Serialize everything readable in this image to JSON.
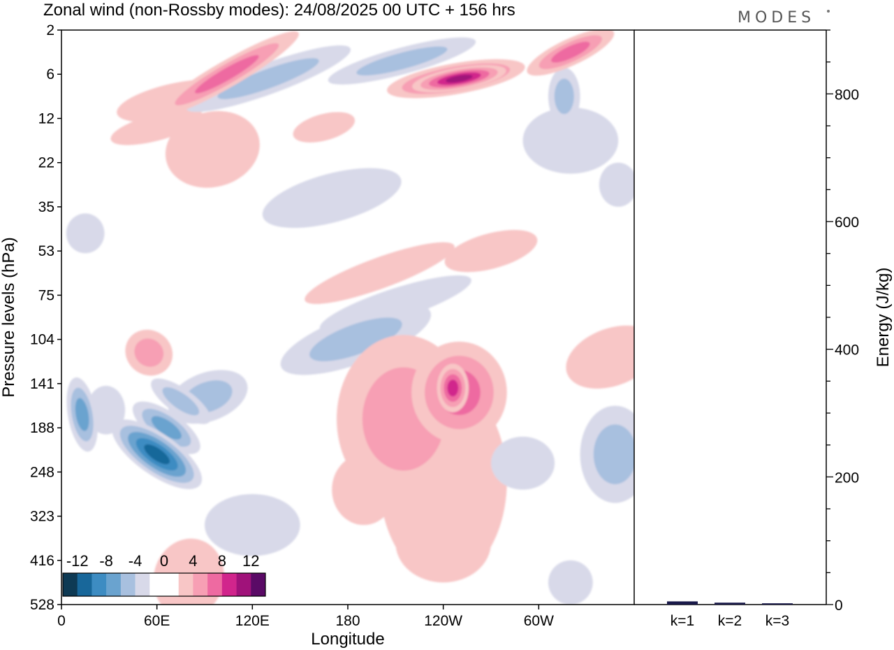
{
  "brand": "MODES",
  "chart_data": [
    {
      "type": "heatmap",
      "title": "Zonal wind (non-Rossby modes):  24/08/2025  00 UTC  + 156 hrs",
      "xlabel": "Longitude",
      "ylabel": "Pressure levels (hPa)",
      "x_ticks": [
        "0",
        "60E",
        "120E",
        "180",
        "120W",
        "60W"
      ],
      "x_range": [
        0,
        360
      ],
      "y_ticks": [
        "2",
        "6",
        "12",
        "22",
        "35",
        "53",
        "75",
        "104",
        "141",
        "188",
        "248",
        "323",
        "416",
        "528"
      ],
      "colorbar": {
        "tick_labels": [
          "-12",
          "-8",
          "-4",
          "0",
          "4",
          "8",
          "12"
        ],
        "bin_colors": [
          "#0e3a54",
          "#18679a",
          "#3d8cc2",
          "#6aa3cf",
          "#a8c0df",
          "#d8d9e9",
          "#ffffff",
          "#ffffff",
          "#f8c6c6",
          "#f79fb4",
          "#ee6aa1",
          "#d1258c",
          "#a0127a",
          "#5a0a66"
        ]
      },
      "blobs": [
        {
          "lon": 60,
          "lev": 9.6,
          "w": 13,
          "h": 2.4,
          "rot": -55,
          "v": -11
        },
        {
          "lon": 66,
          "lev": 9.0,
          "w": 10,
          "h": 1.8,
          "rot": -55,
          "v": -8
        },
        {
          "lon": 75,
          "lev": 8.4,
          "w": 8,
          "h": 1.6,
          "rot": -55,
          "v": -6
        },
        {
          "lon": 92,
          "lev": 8.3,
          "w": 26,
          "h": 1.1,
          "rot": -20,
          "v": -5
        },
        {
          "lon": 13,
          "lev": 8.7,
          "w": 9,
          "h": 1.7,
          "rot": -10,
          "v": -7
        },
        {
          "lon": 28,
          "lev": 8.6,
          "w": 12,
          "h": 1.1,
          "rot": 0,
          "v": -3
        },
        {
          "lon": 185,
          "lev": 7.0,
          "w": 50,
          "h": 1.1,
          "rot": -20,
          "v": -5
        },
        {
          "lon": 210,
          "lev": 6.2,
          "w": 50,
          "h": 0.7,
          "rot": -18,
          "v": -3
        },
        {
          "lon": 215,
          "lev": 8.8,
          "w": 42,
          "h": 3.8,
          "rot": 0,
          "v": 5
        },
        {
          "lon": 250,
          "lev": 8.2,
          "w": 30,
          "h": 2.3,
          "rot": 0,
          "v": 7
        },
        {
          "lon": 246,
          "lev": 8.1,
          "w": 10,
          "h": 1.1,
          "rot": 0,
          "v": 9
        },
        {
          "lon": 240,
          "lev": 10.2,
          "w": 40,
          "h": 4.5,
          "rot": 0,
          "v": 3
        },
        {
          "lon": 348,
          "lev": 9.6,
          "w": 22,
          "h": 2.2,
          "rot": 0,
          "v": -6
        },
        {
          "lon": 346,
          "lev": 7.4,
          "w": 30,
          "h": 1.3,
          "rot": -20,
          "v": 3
        },
        {
          "lon": 248,
          "lev": 1.1,
          "w": 44,
          "h": 0.7,
          "rot": -10,
          "v": 10
        },
        {
          "lon": 250,
          "lev": 1.1,
          "w": 30,
          "h": 0.5,
          "rot": -10,
          "v": 12
        },
        {
          "lon": 104,
          "lev": 1.0,
          "w": 52,
          "h": 0.6,
          "rot": -30,
          "v": 7
        },
        {
          "lon": 130,
          "lev": 1.1,
          "w": 55,
          "h": 0.7,
          "rot": -20,
          "v": -5
        },
        {
          "lon": 214,
          "lev": 0.7,
          "w": 48,
          "h": 0.6,
          "rot": -15,
          "v": -6
        },
        {
          "lon": 316,
          "lev": 1.5,
          "w": 10,
          "h": 1.3,
          "rot": 0,
          "v": -6
        },
        {
          "lon": 320,
          "lev": 0.5,
          "w": 30,
          "h": 0.6,
          "rot": -25,
          "v": 7
        },
        {
          "lon": 55,
          "lev": 7.3,
          "w": 14,
          "h": 1.1,
          "rot": -55,
          "v": 6
        },
        {
          "lon": 95,
          "lev": 2.7,
          "w": 30,
          "h": 1.7,
          "rot": -15,
          "v": 4
        },
        {
          "lon": 72,
          "lev": 1.6,
          "w": 38,
          "h": 0.8,
          "rot": -12,
          "v": 3
        },
        {
          "lon": 170,
          "lev": 3.8,
          "w": 45,
          "h": 1.1,
          "rot": -15,
          "v": -4
        },
        {
          "lon": 320,
          "lev": 2.5,
          "w": 30,
          "h": 1.5,
          "rot": 0,
          "v": -3
        },
        {
          "lon": 270,
          "lev": 5.0,
          "w": 30,
          "h": 0.8,
          "rot": -15,
          "v": 3
        },
        {
          "lon": 200,
          "lev": 5.5,
          "w": 50,
          "h": 0.7,
          "rot": -20,
          "v": 3
        },
        {
          "lon": 80,
          "lev": 12.4,
          "w": 22,
          "h": 1.8,
          "rot": 15,
          "v": 3
        },
        {
          "lon": 240,
          "lev": 11.6,
          "w": 30,
          "h": 1.8,
          "rot": 0,
          "v": 3
        },
        {
          "lon": 190,
          "lev": 10.4,
          "w": 20,
          "h": 1.6,
          "rot": 0,
          "v": 3
        },
        {
          "lon": 290,
          "lev": 9.8,
          "w": 20,
          "h": 1.2,
          "rot": 0,
          "v": -3
        },
        {
          "lon": 120,
          "lev": 11.2,
          "w": 30,
          "h": 1.4,
          "rot": 0,
          "v": -3
        },
        {
          "lon": 320,
          "lev": 12.5,
          "w": 14,
          "h": 1.0,
          "rot": 0,
          "v": -3
        },
        {
          "lon": 15,
          "lev": 4.6,
          "w": 12,
          "h": 0.9,
          "rot": 0,
          "v": -3
        },
        {
          "lon": 350,
          "lev": 3.5,
          "w": 12,
          "h": 1.0,
          "rot": 0,
          "v": -3
        },
        {
          "lon": 60,
          "lev": 2.2,
          "w": 30,
          "h": 0.6,
          "rot": -15,
          "v": 3
        },
        {
          "lon": 165,
          "lev": 2.2,
          "w": 20,
          "h": 0.6,
          "rot": -15,
          "v": 3
        }
      ]
    },
    {
      "type": "bar",
      "ylabel": "Energy (J/kg)",
      "categories": [
        "k=1",
        "k=2",
        "k=3"
      ],
      "values": [
        5,
        3,
        2
      ],
      "ylim": [
        0,
        900
      ],
      "y_ticks": [
        "0",
        "200",
        "400",
        "600",
        "800"
      ],
      "minor_step": 50
    }
  ]
}
